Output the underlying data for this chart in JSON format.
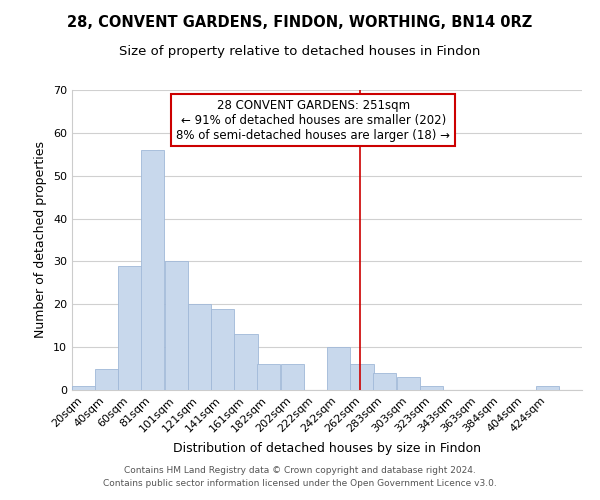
{
  "title": "28, CONVENT GARDENS, FINDON, WORTHING, BN14 0RZ",
  "subtitle": "Size of property relative to detached houses in Findon",
  "xlabel": "Distribution of detached houses by size in Findon",
  "ylabel": "Number of detached properties",
  "bar_labels": [
    "20sqm",
    "40sqm",
    "60sqm",
    "81sqm",
    "101sqm",
    "121sqm",
    "141sqm",
    "161sqm",
    "182sqm",
    "202sqm",
    "222sqm",
    "242sqm",
    "262sqm",
    "283sqm",
    "303sqm",
    "323sqm",
    "343sqm",
    "363sqm",
    "384sqm",
    "404sqm",
    "424sqm"
  ],
  "bar_values": [
    1,
    5,
    29,
    56,
    30,
    20,
    19,
    13,
    6,
    6,
    0,
    10,
    6,
    4,
    3,
    1,
    0,
    0,
    0,
    0,
    1
  ],
  "bar_widths": [
    20,
    20,
    21,
    20,
    20,
    20,
    20,
    21,
    20,
    20,
    20,
    20,
    21,
    20,
    20,
    20,
    20,
    21,
    20,
    20,
    20
  ],
  "bar_left_edges": [
    0,
    20,
    40,
    60,
    81,
    101,
    121,
    141,
    161,
    182,
    202,
    222,
    242,
    262,
    283,
    303,
    323,
    343,
    363,
    384,
    404
  ],
  "bar_color": "#c8d8ec",
  "bar_edge_color": "#a0b8d8",
  "grid_color": "#d0d0d0",
  "vline_x": 251,
  "vline_color": "#cc0000",
  "ylim": [
    0,
    70
  ],
  "yticks": [
    0,
    10,
    20,
    30,
    40,
    50,
    60,
    70
  ],
  "annotation_title": "28 CONVENT GARDENS: 251sqm",
  "annotation_line1": "← 91% of detached houses are smaller (202)",
  "annotation_line2": "8% of semi-detached houses are larger (18) →",
  "annotation_box_color": "#ffffff",
  "annotation_box_edge": "#cc0000",
  "footer_line1": "Contains HM Land Registry data © Crown copyright and database right 2024.",
  "footer_line2": "Contains public sector information licensed under the Open Government Licence v3.0.",
  "title_fontsize": 10.5,
  "subtitle_fontsize": 9.5,
  "axis_label_fontsize": 9,
  "tick_fontsize": 8,
  "annotation_fontsize": 8.5,
  "footer_fontsize": 6.5
}
